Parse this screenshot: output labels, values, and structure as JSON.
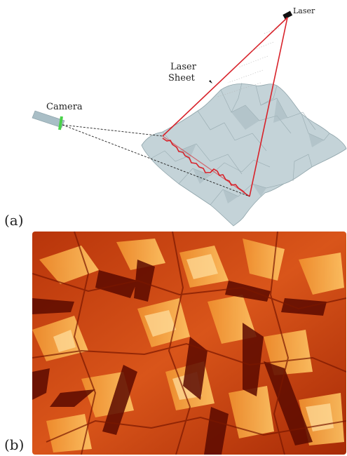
{
  "figure": {
    "panel_a": {
      "label": "(a)",
      "laser_label": "Laser",
      "laser_sheet_label_line1": "Laser",
      "laser_sheet_label_line2": "Sheet",
      "camera_label": "Camera"
    },
    "panel_b": {
      "label": "(b)"
    }
  },
  "colors": {
    "surface_fill": "#c4d3d8",
    "surface_shadow": "#9fb2b8",
    "laser_red": "#d8222a",
    "camera_body": "#a9bec6",
    "camera_lens": "#49d14a",
    "photo_dark": "#5c0a00",
    "photo_mid": "#c8340a",
    "photo_light": "#f39a3c",
    "photo_highlight": "#ffd27a"
  }
}
